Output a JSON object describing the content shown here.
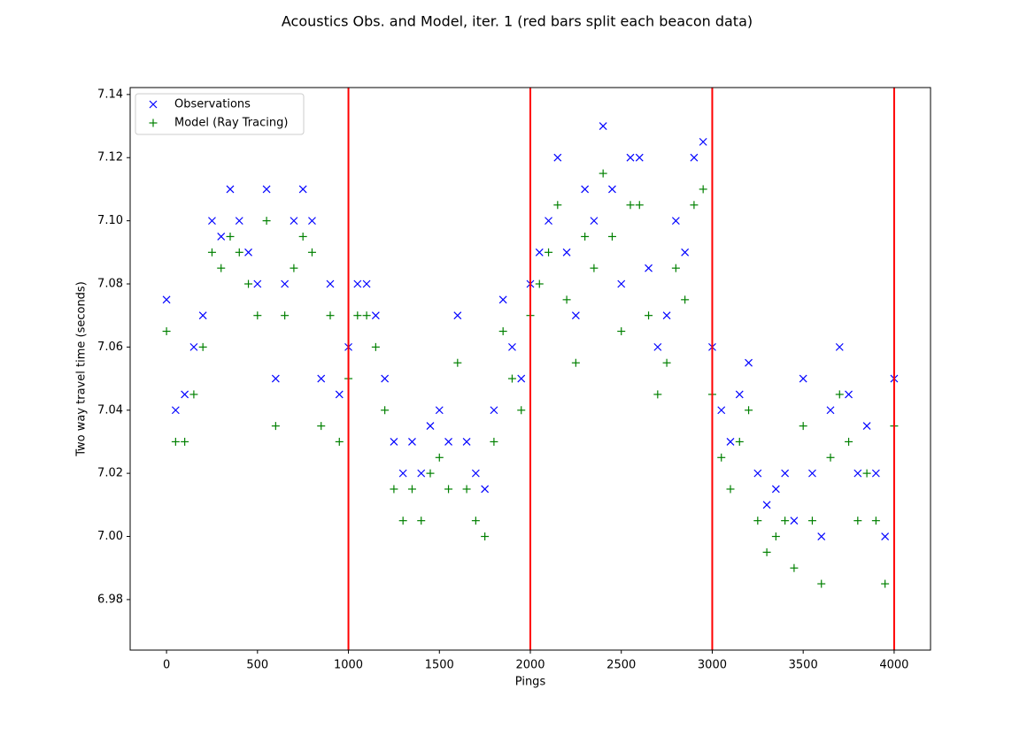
{
  "chart_data": {
    "type": "scatter",
    "title": "Acoustics Obs. and Model, iter. 1 (red bars split each beacon data)",
    "x_label": "Pings",
    "y_label": "Two way travel time (seconds)",
    "x": [
      0,
      50,
      100,
      150,
      200,
      250,
      300,
      350,
      400,
      450,
      500,
      550,
      600,
      650,
      700,
      750,
      800,
      850,
      900,
      950,
      1000,
      1050,
      1100,
      1150,
      1200,
      1250,
      1300,
      1350,
      1400,
      1450,
      1500,
      1550,
      1600,
      1650,
      1700,
      1750,
      1800,
      1850,
      1900,
      1950,
      2000,
      2050,
      2100,
      2150,
      2200,
      2250,
      2300,
      2350,
      2400,
      2450,
      2500,
      2550,
      2600,
      2650,
      2700,
      2750,
      2800,
      2850,
      2900,
      2950,
      3000,
      3050,
      3100,
      3150,
      3200,
      3250,
      3300,
      3350,
      3400,
      3450,
      3500,
      3550,
      3600,
      3650,
      3700,
      3750,
      3800,
      3850,
      3900,
      3950,
      4000
    ],
    "series": [
      {
        "name": "Observations",
        "color": "#0000ff",
        "marker": "x",
        "values": [
          7.075,
          7.04,
          7.045,
          7.06,
          7.07,
          7.1,
          7.095,
          7.11,
          7.1,
          7.09,
          7.08,
          7.11,
          7.05,
          7.08,
          7.1,
          7.11,
          7.1,
          7.05,
          7.08,
          7.045,
          7.06,
          7.08,
          7.08,
          7.07,
          7.05,
          7.03,
          7.02,
          7.03,
          7.02,
          7.035,
          7.04,
          7.03,
          7.07,
          7.03,
          7.02,
          7.015,
          7.04,
          7.075,
          7.06,
          7.05,
          7.08,
          7.09,
          7.1,
          7.12,
          7.09,
          7.07,
          7.11,
          7.1,
          7.13,
          7.11,
          7.08,
          7.12,
          7.12,
          7.085,
          7.06,
          7.07,
          7.1,
          7.09,
          7.12,
          7.125,
          7.06,
          7.04,
          7.03,
          7.045,
          7.055,
          7.02,
          7.01,
          7.015,
          7.02,
          7.005,
          7.05,
          7.02,
          7.0,
          7.04,
          7.06,
          7.045,
          7.02,
          7.035,
          7.02,
          7.0,
          7.05
        ]
      },
      {
        "name": "Model (Ray Tracing)",
        "color": "#008000",
        "marker": "+",
        "values": [
          7.065,
          7.03,
          7.03,
          7.045,
          7.06,
          7.09,
          7.085,
          7.095,
          7.09,
          7.08,
          7.07,
          7.1,
          7.035,
          7.07,
          7.085,
          7.095,
          7.09,
          7.035,
          7.07,
          7.03,
          7.05,
          7.07,
          7.07,
          7.06,
          7.04,
          7.015,
          7.005,
          7.015,
          7.005,
          7.02,
          7.025,
          7.015,
          7.055,
          7.015,
          7.005,
          7.0,
          7.03,
          7.065,
          7.05,
          7.04,
          7.07,
          7.08,
          7.09,
          7.105,
          7.075,
          7.055,
          7.095,
          7.085,
          7.115,
          7.095,
          7.065,
          7.105,
          7.105,
          7.07,
          7.045,
          7.055,
          7.085,
          7.075,
          7.105,
          7.11,
          7.045,
          7.025,
          7.015,
          7.03,
          7.04,
          7.005,
          6.995,
          7.0,
          7.005,
          6.99,
          7.035,
          7.005,
          6.985,
          7.025,
          7.045,
          7.03,
          7.005,
          7.02,
          7.005,
          6.985,
          7.035
        ]
      }
    ],
    "vlines": [
      1000,
      2000,
      3000,
      4000
    ],
    "vline_color": "#ff0000",
    "xlim": [
      -200,
      4200
    ],
    "xticks": [
      0,
      500,
      1000,
      1500,
      2000,
      2500,
      3000,
      3500,
      4000
    ],
    "ylim": [
      6.964,
      7.1422
    ],
    "yticks": [
      6.98,
      {
        "value": 7.0,
        "label": "7.00"
      },
      7.02,
      7.04,
      7.06,
      7.08,
      {
        "value": 7.1,
        "label": "7.10"
      },
      7.12,
      7.14
    ],
    "legend": "upper left"
  }
}
